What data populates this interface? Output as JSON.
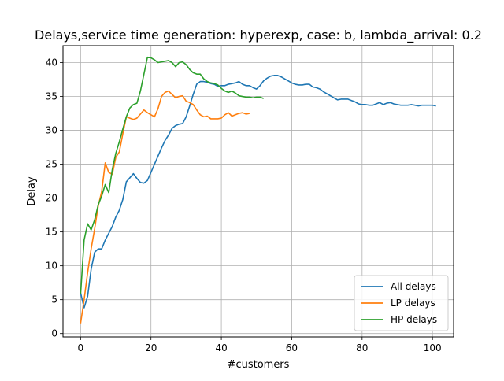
{
  "chart_data": {
    "type": "line",
    "title": "Delays,service time generation: hyperexp, case: b, lambda_arrival: 0.2",
    "xlabel": "#customers",
    "ylabel": "Delay",
    "xlim": [
      -5,
      106
    ],
    "ylim": [
      -0.5,
      42.5
    ],
    "xticks": [
      0,
      20,
      40,
      60,
      80,
      100
    ],
    "yticks": [
      0,
      5,
      10,
      15,
      20,
      25,
      30,
      35,
      40
    ],
    "grid": true,
    "legend_position": "lower-right",
    "series": [
      {
        "name": "All delays",
        "color": "#1f77b4",
        "x": [
          0,
          1,
          2,
          3,
          4,
          5,
          6,
          7,
          8,
          9,
          10,
          11,
          12,
          13,
          14,
          15,
          16,
          17,
          18,
          19,
          20,
          21,
          22,
          23,
          24,
          25,
          26,
          27,
          28,
          29,
          30,
          31,
          32,
          33,
          34,
          35,
          36,
          37,
          38,
          39,
          40,
          41,
          42,
          43,
          44,
          45,
          46,
          47,
          48,
          49,
          50,
          51,
          52,
          53,
          54,
          55,
          56,
          57,
          58,
          59,
          60,
          61,
          62,
          63,
          64,
          65,
          66,
          67,
          68,
          69,
          70,
          71,
          72,
          73,
          74,
          75,
          76,
          77,
          78,
          79,
          80,
          81,
          82,
          83,
          84,
          85,
          86,
          87,
          88,
          89,
          90,
          91,
          92,
          93,
          94,
          95,
          96,
          97,
          98,
          99,
          100,
          101
        ],
        "y": [
          6.0,
          3.8,
          5.5,
          9.5,
          12.0,
          12.5,
          12.5,
          13.8,
          14.8,
          15.8,
          17.2,
          18.2,
          19.8,
          22.4,
          23.0,
          23.6,
          22.9,
          22.3,
          22.2,
          22.6,
          23.8,
          25.0,
          26.2,
          27.4,
          28.5,
          29.3,
          30.3,
          30.7,
          30.9,
          31.0,
          32.0,
          33.6,
          35.3,
          36.8,
          37.2,
          37.2,
          37.1,
          36.9,
          36.8,
          36.5,
          36.6,
          36.6,
          36.8,
          36.9,
          37.0,
          37.2,
          36.8,
          36.6,
          36.6,
          36.3,
          36.1,
          36.6,
          37.3,
          37.7,
          38.0,
          38.1,
          38.1,
          37.9,
          37.6,
          37.3,
          37.0,
          36.8,
          36.7,
          36.7,
          36.8,
          36.8,
          36.4,
          36.3,
          36.1,
          35.7,
          35.4,
          35.1,
          34.8,
          34.5,
          34.6,
          34.6,
          34.6,
          34.4,
          34.2,
          33.9,
          33.8,
          33.8,
          33.7,
          33.7,
          33.9,
          34.1,
          33.8,
          34.0,
          34.1,
          33.9,
          33.8,
          33.7,
          33.7,
          33.7,
          33.8,
          33.7,
          33.6,
          33.7,
          33.7,
          33.7,
          33.7,
          33.6
        ]
      },
      {
        "name": "LP delays",
        "color": "#ff7f0e",
        "x": [
          0,
          1,
          2,
          3,
          4,
          5,
          6,
          7,
          8,
          9,
          10,
          11,
          12,
          13,
          14,
          15,
          16,
          17,
          18,
          19,
          20,
          21,
          22,
          23,
          24,
          25,
          26,
          27,
          28,
          29,
          30,
          31,
          32,
          33,
          34,
          35,
          36,
          37,
          38,
          39,
          40,
          41,
          42,
          43,
          44,
          45,
          46,
          47,
          48
        ],
        "y": [
          1.5,
          5.0,
          9.0,
          12.5,
          15.5,
          18.8,
          21.0,
          25.2,
          23.8,
          23.5,
          26.0,
          26.8,
          29.5,
          32.0,
          31.8,
          31.6,
          31.8,
          32.4,
          33.0,
          32.6,
          32.3,
          32.0,
          33.2,
          35.0,
          35.6,
          35.8,
          35.3,
          34.8,
          35.0,
          35.1,
          34.3,
          34.1,
          33.8,
          33.0,
          32.3,
          32.0,
          32.1,
          31.7,
          31.7,
          31.7,
          31.8,
          32.3,
          32.6,
          32.1,
          32.3,
          32.5,
          32.6,
          32.4,
          32.5
        ]
      },
      {
        "name": "HP delays",
        "color": "#2ca02c",
        "x": [
          0,
          1,
          2,
          3,
          4,
          5,
          6,
          7,
          8,
          9,
          10,
          11,
          12,
          13,
          14,
          15,
          16,
          17,
          18,
          19,
          20,
          21,
          22,
          23,
          24,
          25,
          26,
          27,
          28,
          29,
          30,
          31,
          32,
          33,
          34,
          35,
          36,
          37,
          38,
          39,
          40,
          41,
          42,
          43,
          44,
          45,
          46,
          47,
          48,
          49,
          50,
          51,
          52
        ],
        "y": [
          5.8,
          13.8,
          16.2,
          15.3,
          16.8,
          19.0,
          20.3,
          22.0,
          20.8,
          24.2,
          26.6,
          28.3,
          30.2,
          32.0,
          33.3,
          33.8,
          34.0,
          35.8,
          38.3,
          40.8,
          40.7,
          40.4,
          40.0,
          40.1,
          40.2,
          40.3,
          40.0,
          39.4,
          40.0,
          40.1,
          39.7,
          39.0,
          38.5,
          38.3,
          38.3,
          37.6,
          37.2,
          37.0,
          36.9,
          36.7,
          36.2,
          35.8,
          35.6,
          35.8,
          35.5,
          35.1,
          35.0,
          34.9,
          34.9,
          34.8,
          34.9,
          34.9,
          34.7
        ]
      }
    ]
  }
}
